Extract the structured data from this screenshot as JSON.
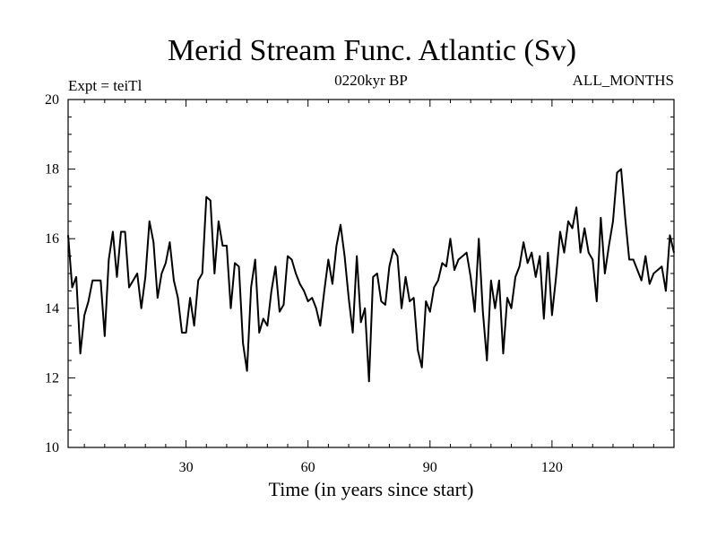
{
  "chart_data": {
    "type": "line",
    "title": "Merid Stream Func. Atlantic (Sv)",
    "subtitle_left": "Expt = teiTl",
    "subtitle_center": "0220kyr BP",
    "subtitle_right": "ALL_MONTHS",
    "xlabel": "Time (in years since start)",
    "ylabel": "",
    "xlim": [
      1,
      150
    ],
    "ylim": [
      10,
      20
    ],
    "x_ticks": [
      30,
      60,
      90,
      120
    ],
    "x_tick_labels": [
      "30",
      "60",
      "90",
      "120"
    ],
    "y_ticks": [
      10,
      12,
      14,
      16,
      18,
      20
    ],
    "y_tick_labels": [
      "10",
      "12",
      "14",
      "16",
      "18",
      "20"
    ],
    "grid": false,
    "series": [
      {
        "name": "Merid Stream Func. Atlantic",
        "x": [
          1,
          2,
          3,
          4,
          5,
          6,
          7,
          8,
          9,
          10,
          11,
          12,
          13,
          14,
          15,
          16,
          17,
          18,
          19,
          20,
          21,
          22,
          23,
          24,
          25,
          26,
          27,
          28,
          29,
          30,
          31,
          32,
          33,
          34,
          35,
          36,
          37,
          38,
          39,
          40,
          41,
          42,
          43,
          44,
          45,
          46,
          47,
          48,
          49,
          50,
          51,
          52,
          53,
          54,
          55,
          56,
          57,
          58,
          59,
          60,
          61,
          62,
          63,
          64,
          65,
          66,
          67,
          68,
          69,
          70,
          71,
          72,
          73,
          74,
          75,
          76,
          77,
          78,
          79,
          80,
          81,
          82,
          83,
          84,
          85,
          86,
          87,
          88,
          89,
          90,
          91,
          92,
          93,
          94,
          95,
          96,
          97,
          98,
          99,
          100,
          101,
          102,
          103,
          104,
          105,
          106,
          107,
          108,
          109,
          110,
          111,
          112,
          113,
          114,
          115,
          116,
          117,
          118,
          119,
          120,
          121,
          122,
          123,
          124,
          125,
          126,
          127,
          128,
          129,
          130,
          131,
          132,
          133,
          134,
          135,
          136,
          137,
          138,
          139,
          140,
          141,
          142,
          143,
          144,
          145,
          146,
          147,
          148,
          149,
          150
        ],
        "values": [
          16.1,
          14.6,
          14.9,
          12.7,
          13.8,
          14.2,
          14.8,
          14.8,
          14.8,
          13.2,
          15.4,
          16.2,
          14.9,
          16.2,
          16.2,
          14.6,
          14.8,
          15.0,
          14.0,
          14.9,
          16.5,
          15.9,
          14.3,
          15.0,
          15.3,
          15.9,
          14.8,
          14.3,
          13.3,
          13.3,
          14.3,
          13.5,
          14.8,
          15.0,
          17.2,
          17.1,
          15.0,
          16.5,
          15.8,
          15.8,
          14.0,
          15.3,
          15.2,
          13.0,
          12.2,
          14.6,
          15.4,
          13.3,
          13.7,
          13.5,
          14.5,
          15.2,
          13.9,
          14.1,
          15.5,
          15.4,
          15.0,
          14.7,
          14.5,
          14.2,
          14.3,
          14.0,
          13.5,
          14.5,
          15.4,
          14.7,
          15.8,
          16.4,
          15.5,
          14.3,
          13.3,
          15.5,
          13.6,
          14.0,
          11.9,
          14.9,
          15.0,
          14.2,
          14.1,
          15.2,
          15.7,
          15.5,
          14.0,
          14.9,
          14.2,
          14.3,
          12.8,
          12.3,
          14.2,
          13.9,
          14.6,
          14.8,
          15.3,
          15.2,
          16.0,
          15.1,
          15.4,
          15.5,
          15.6,
          14.9,
          13.9,
          16.0,
          13.9,
          12.5,
          14.8,
          14.0,
          14.8,
          12.7,
          14.3,
          14.0,
          14.9,
          15.2,
          15.9,
          15.3,
          15.6,
          14.9,
          15.5,
          13.7,
          15.6,
          13.8,
          14.9,
          16.2,
          15.6,
          16.5,
          16.3,
          16.9,
          15.6,
          16.3,
          15.6,
          15.4,
          14.2,
          16.6,
          15.0,
          15.8,
          16.5,
          17.9,
          18.0,
          16.6,
          15.4,
          15.4,
          15.1,
          14.8,
          15.5,
          14.7,
          15.0,
          15.1,
          15.2,
          14.5,
          16.1,
          15.6
        ]
      }
    ]
  }
}
